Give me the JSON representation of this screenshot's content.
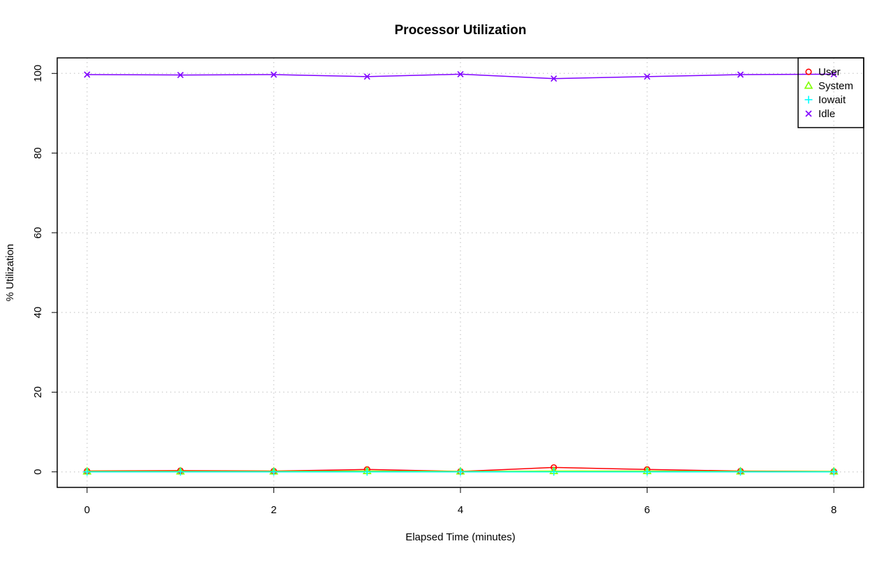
{
  "chart_data": {
    "type": "line",
    "title": "Processor Utilization",
    "xlabel": "Elapsed Time (minutes)",
    "ylabel": "% Utilization",
    "xlim": [
      -0.32,
      8.32
    ],
    "ylim": [
      -3.9,
      103.9
    ],
    "x_ticks": [
      0,
      2,
      4,
      6,
      8
    ],
    "y_ticks": [
      0,
      20,
      40,
      60,
      80,
      100
    ],
    "grid": true,
    "legend_position": "top-right",
    "x": [
      0,
      1,
      2,
      3,
      4,
      5,
      6,
      7,
      8
    ],
    "series": [
      {
        "name": "User",
        "color": "#ff0000",
        "marker": "circle",
        "values": [
          0.2,
          0.3,
          0.2,
          0.6,
          0.1,
          1.1,
          0.6,
          0.2,
          0.1
        ]
      },
      {
        "name": "System",
        "color": "#80ff00",
        "marker": "triangle",
        "values": [
          0.1,
          0.1,
          0.1,
          0.2,
          0.1,
          0.2,
          0.2,
          0.1,
          0.1
        ]
      },
      {
        "name": "Iowait",
        "color": "#00ffff",
        "marker": "plus",
        "values": [
          0.0,
          0.0,
          0.0,
          0.0,
          0.0,
          0.0,
          0.0,
          0.0,
          0.0
        ]
      },
      {
        "name": "Idle",
        "color": "#8000ff",
        "marker": "cross",
        "values": [
          99.7,
          99.6,
          99.7,
          99.2,
          99.8,
          98.7,
          99.2,
          99.7,
          99.8
        ]
      }
    ]
  }
}
